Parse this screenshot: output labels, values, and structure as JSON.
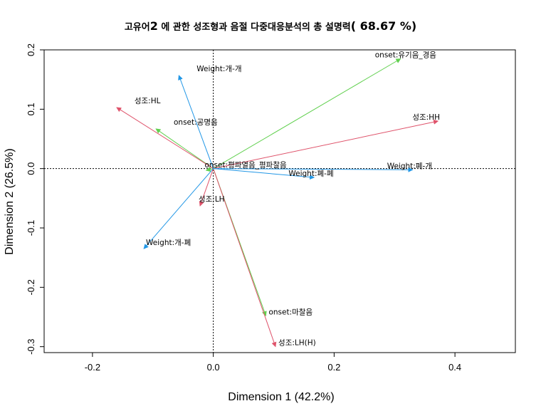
{
  "chart_data": {
    "type": "biplot",
    "title": {
      "prefix": "고유어",
      "number": "2",
      "middle": " 에 관한 성조형과 음절 다중대응분석의 총 설명력",
      "explained": "( 68.67 %)"
    },
    "xlabel": "Dimension 1 (42.2%)",
    "ylabel": "Dimension 2 (26.5%)",
    "xlim": [
      -0.28,
      0.5
    ],
    "ylim": [
      -0.31,
      0.2
    ],
    "xticks": [
      -0.2,
      0.0,
      0.2,
      0.4
    ],
    "xtick_labels": [
      "-0.2",
      "0.0",
      "0.2",
      "0.4"
    ],
    "yticks": [
      -0.3,
      -0.2,
      -0.1,
      0.0,
      0.1,
      0.2
    ],
    "ytick_labels": [
      "-0.3",
      "-0.2",
      "-0.1",
      "0.0",
      "0.1",
      "0.2"
    ],
    "reference_lines": {
      "x": 0,
      "y": 0,
      "style": "dotted"
    },
    "groups": [
      {
        "name": "onset",
        "color": "#61D04F",
        "points": [
          {
            "label": "onset:유기음_경음",
            "x": 0.31,
            "y": 0.185
          },
          {
            "label": "onset:공명음",
            "x": -0.095,
            "y": 0.067
          },
          {
            "label": "onset:평파열음_평파찰음",
            "x": -0.012,
            "y": -0.003
          },
          {
            "label": "onset:마찰음",
            "x": 0.087,
            "y": -0.248
          }
        ]
      },
      {
        "name": "성조",
        "color": "#DF536B",
        "points": [
          {
            "label": "성조:HH",
            "x": 0.372,
            "y": 0.08
          },
          {
            "label": "성조:HL",
            "x": -0.16,
            "y": 0.103
          },
          {
            "label": "성조:LH",
            "x": -0.022,
            "y": -0.063
          },
          {
            "label": "성조:LH(H)",
            "x": 0.103,
            "y": -0.3
          }
        ]
      },
      {
        "name": "Weight",
        "color": "#2297E6",
        "points": [
          {
            "label": "Weight:개-개",
            "x": -0.057,
            "y": 0.157
          },
          {
            "label": "Weight:폐-폐",
            "x": 0.167,
            "y": -0.015
          },
          {
            "label": "Weight:폐-개",
            "x": 0.33,
            "y": -0.002
          },
          {
            "label": "Weight:개-폐",
            "x": -0.115,
            "y": -0.135
          }
        ]
      }
    ]
  }
}
